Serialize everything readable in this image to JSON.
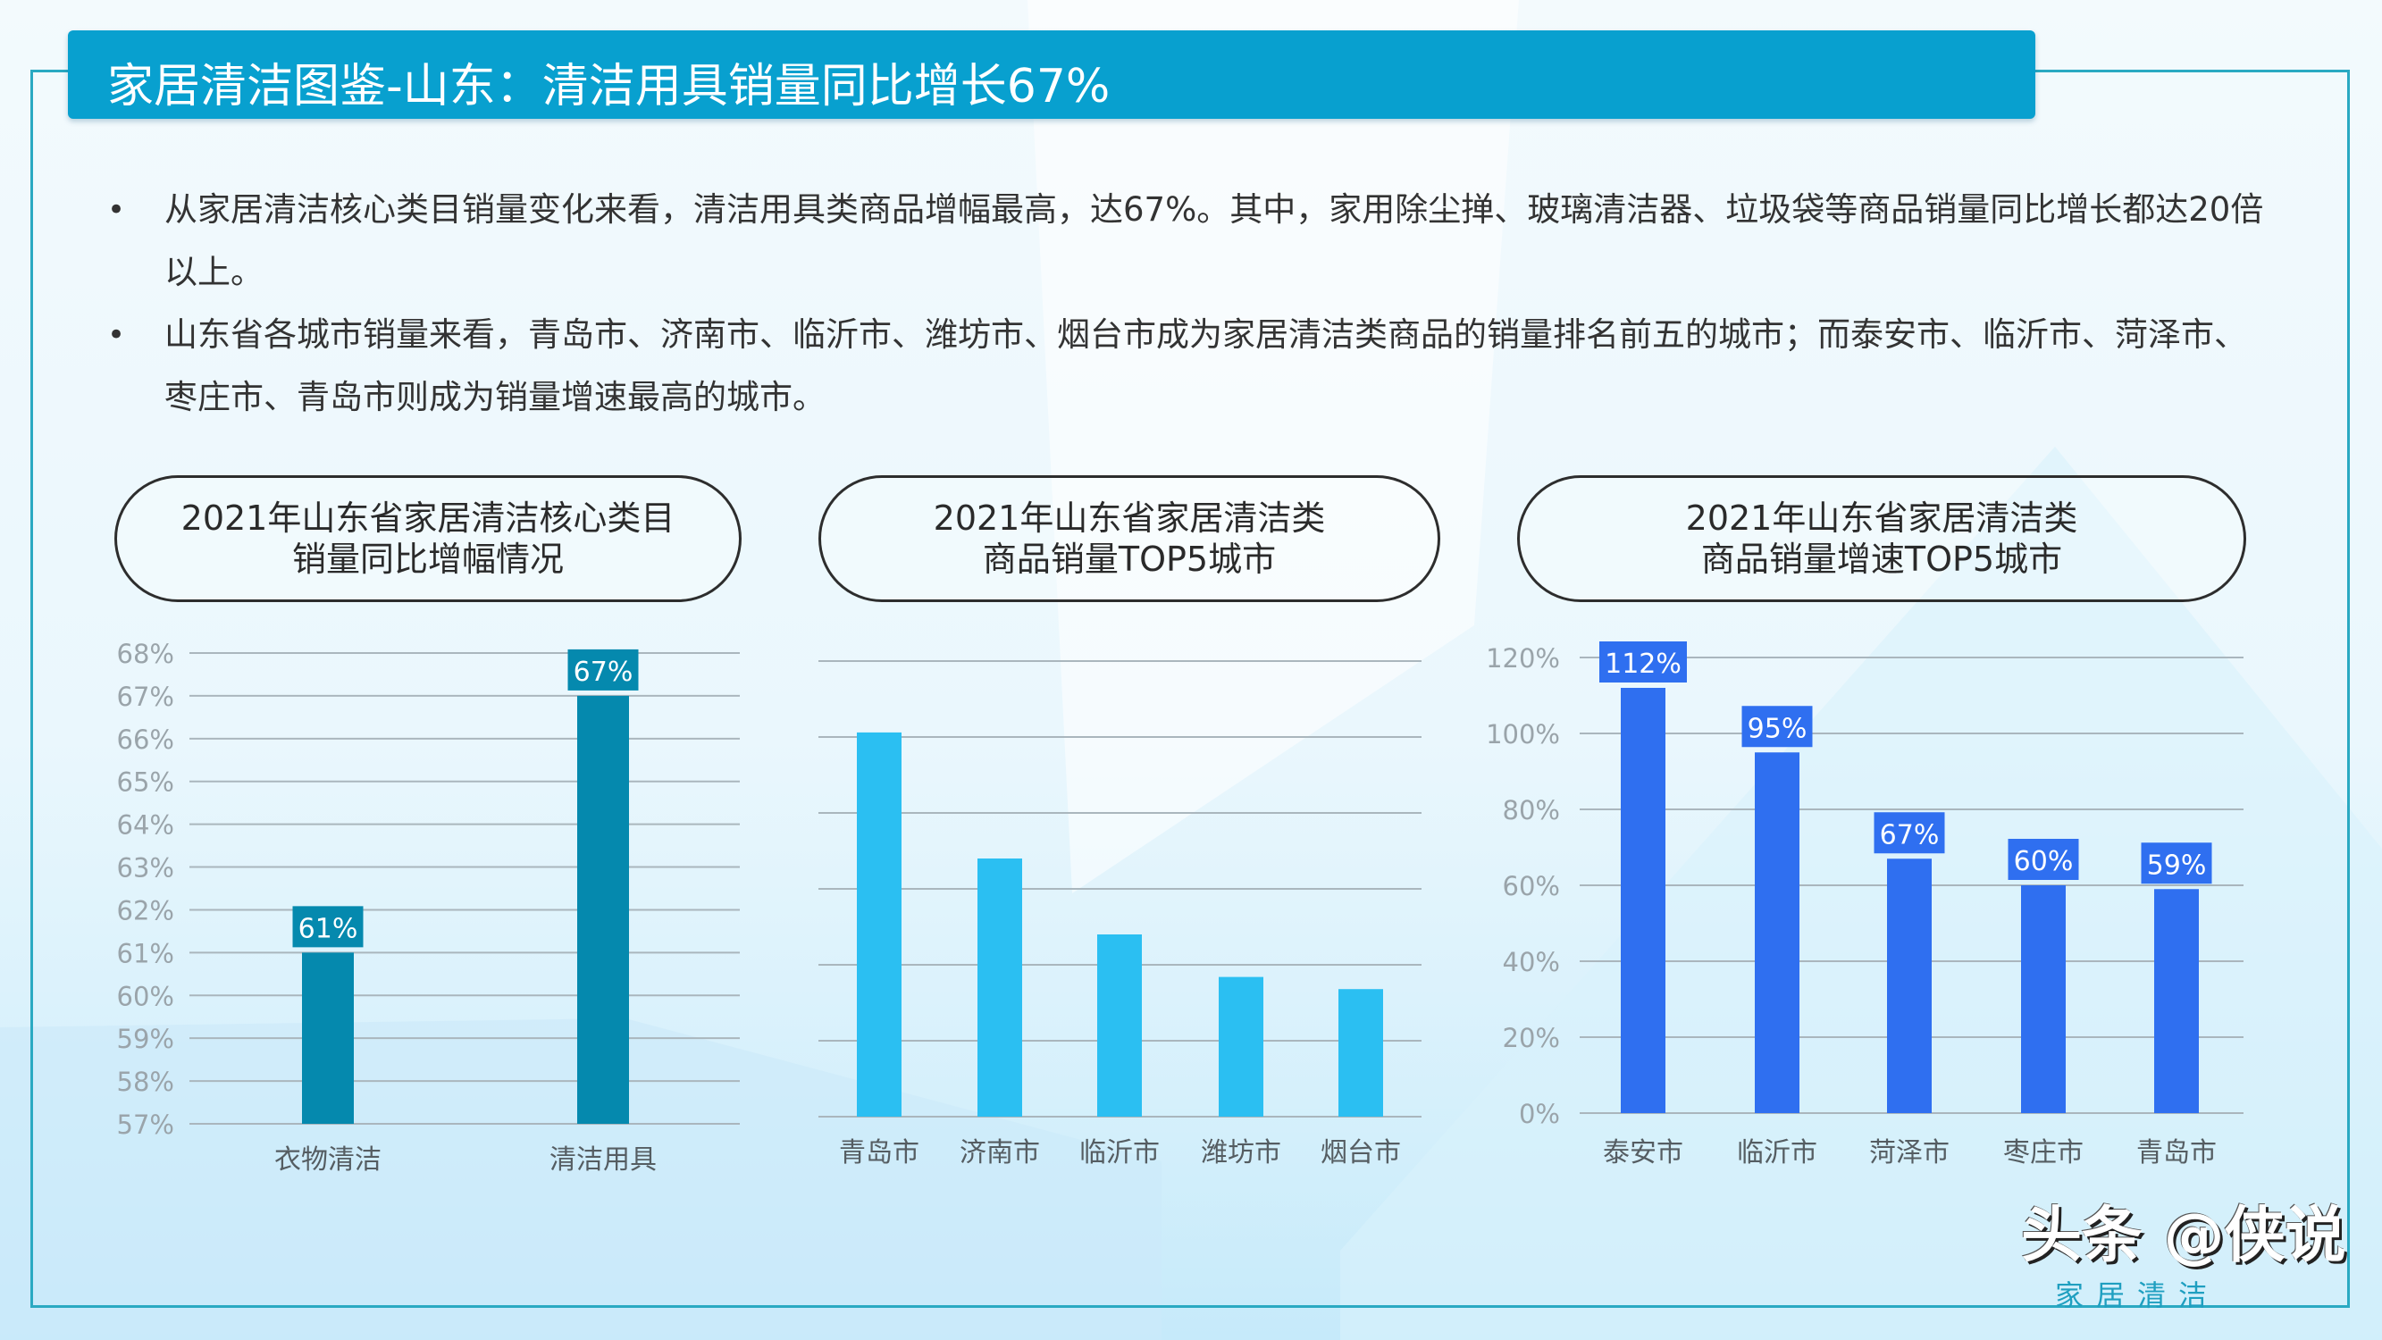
{
  "header": {
    "title": "家居清洁图鉴-山东：清洁用具销量同比增长67%"
  },
  "bullets": [
    "从家居清洁核心类目销量变化来看，清洁用具类商品增幅最高，达67%。其中，家用除尘掸、玻璃清洁器、垃圾袋等商品销量同比增长都达20倍以上。",
    "山东省各城市销量来看，青岛市、济南市、临沂市、潍坊市、烟台市成为家居清洁类商品的销量排名前五的城市；而泰安市、临沂市、菏泽市、枣庄市、青岛市则成为销量增速最高的城市。"
  ],
  "bullet_symbol": "•",
  "panels": [
    {
      "title_line1": "2021年山东省家居清洁核心类目",
      "title_line2": "销量同比增幅情况"
    },
    {
      "title_line1": "2021年山东省家居清洁类",
      "title_line2": "商品销量TOP5城市"
    },
    {
      "title_line1": "2021年山东省家居清洁类",
      "title_line2": "商品销量增速TOP5城市"
    }
  ],
  "chart_data": [
    {
      "type": "bar",
      "categories": [
        "衣物清洁",
        "清洁用具"
      ],
      "values": [
        61,
        67
      ],
      "data_labels": [
        "61%",
        "67%"
      ],
      "yticks": [
        "57%",
        "58%",
        "59%",
        "60%",
        "61%",
        "62%",
        "63%",
        "64%",
        "65%",
        "66%",
        "67%",
        "68%"
      ],
      "ylim": [
        57,
        68
      ],
      "grid": true,
      "color": "#0589ae"
    },
    {
      "type": "bar",
      "categories": [
        "青岛市",
        "济南市",
        "临沂市",
        "潍坊市",
        "烟台市"
      ],
      "values": [
        5.06,
        3.4,
        2.4,
        1.84,
        1.68
      ],
      "ylim": [
        0,
        6
      ],
      "yticks_shown": false,
      "grid": true,
      "color": "#2bbff2"
    },
    {
      "type": "bar",
      "categories": [
        "泰安市",
        "临沂市",
        "菏泽市",
        "枣庄市",
        "青岛市"
      ],
      "values": [
        112,
        95,
        67,
        60,
        59
      ],
      "data_labels": [
        "112%",
        "95%",
        "67%",
        "60%",
        "59%"
      ],
      "yticks": [
        "0%",
        "20%",
        "40%",
        "60%",
        "80%",
        "100%",
        "120%"
      ],
      "ylim": [
        0,
        120
      ],
      "grid": true,
      "color": "#2f6ff0"
    }
  ],
  "watermark": {
    "main": "头条 @侠说",
    "sub": "家居清洁"
  }
}
